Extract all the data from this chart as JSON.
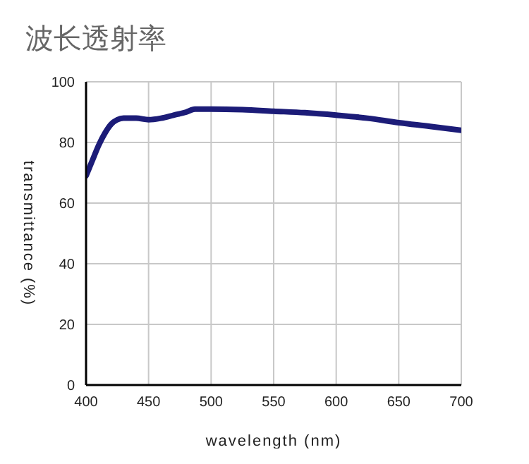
{
  "chart_data": {
    "type": "line",
    "title": "波长透射率",
    "xlabel": "wavelength (nm)",
    "ylabel": "transmittance (%)",
    "x": [
      400,
      405,
      410,
      415,
      420,
      425,
      430,
      440,
      450,
      460,
      470,
      480,
      487,
      500,
      525,
      550,
      575,
      600,
      625,
      650,
      675,
      700
    ],
    "series": [
      {
        "color": "#1c1c78",
        "values": [
          69,
          74,
          79,
          83,
          86,
          87.5,
          88,
          88,
          87.5,
          88,
          89,
          90,
          91,
          91,
          90.8,
          90.3,
          89.8,
          89,
          88,
          86.5,
          85.3,
          84
        ]
      }
    ],
    "xlim": [
      400,
      700
    ],
    "xticks": [
      400,
      450,
      500,
      550,
      600,
      650,
      700
    ],
    "ylim": [
      0,
      100
    ],
    "yticks": [
      0,
      20,
      40,
      60,
      80,
      100
    ],
    "grid": true,
    "marker": "none",
    "line_style": "solid"
  }
}
